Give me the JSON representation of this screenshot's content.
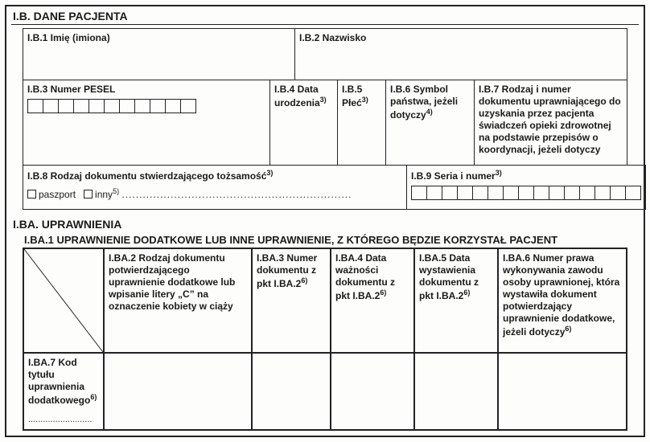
{
  "section_ib": {
    "title": "I.B. DANE PACJENTA",
    "b1": "I.B.1 Imię (imiona)",
    "b2": "I.B.2 Nazwisko",
    "b3": "I.B.3 Numer PESEL",
    "b4": "I.B.4 Data urodzenia",
    "b4_sup": "3)",
    "b5": "I.B.5 Płeć",
    "b5_sup": "3)",
    "b6": "I.B.6 Symbol państwa, jeżeli dotyczy",
    "b6_sup": "4)",
    "b7": "I.B.7 Rodzaj i numer dokumentu uprawniającego do uzyskania przez pacjenta świadczeń opieki zdrowotnej na podstawie przepisów o koordynacji, jeżeli dotyczy",
    "b8": "I.B.8 Rodzaj dokumentu stwierdzającego tożsamość",
    "b8_sup": "3)",
    "b8_opt1": "paszport",
    "b8_opt2": "inny",
    "b8_opt2_sup": "5)",
    "b8_dots": "..................................................................",
    "b9": "I.B.9 Seria i numer",
    "b9_sup": "3)",
    "pesel_len": 11,
    "serial_len": 15
  },
  "section_iba": {
    "title": "I.BA. UPRAWNIENIA",
    "sub": "I.BA.1 UPRAWNIENIE DODATKOWE LUB INNE UPRAWNIENIE, Z KTÓREGO BĘDZIE KORZYSTAŁ PACJENT",
    "ba2": "I.BA.2 Rodzaj dokumentu potwierdzającego uprawnienie dodatkowe lub wpisanie litery „C” na oznaczenie kobiety w ciąży",
    "ba3": "I.BA.3 Numer dokumentu z pkt I.BA.2",
    "ba3_sup": "6)",
    "ba4": "I.BA.4 Data ważności dokumentu z pkt I.BA.2",
    "ba4_sup": "6)",
    "ba5": "I.BA.5 Data wystawienia dokumentu z pkt I.BA.2",
    "ba5_sup": "6)",
    "ba6": "I.BA.6 Numer prawa wykonywania zawodu osoby uprawnionej, która wystawiła dokument potwierdzający uprawnienie dodatkowe, jeżeli dotyczy",
    "ba6_sup": "6)",
    "ba7": "I.BA.7 Kod tytułu uprawnienia dodatkowego",
    "ba7_sup": "6)",
    "ba7_dots": ".........................."
  },
  "colors": {
    "border": "#222222",
    "background": "#fdfdfb",
    "text": "#1a1a1a"
  }
}
